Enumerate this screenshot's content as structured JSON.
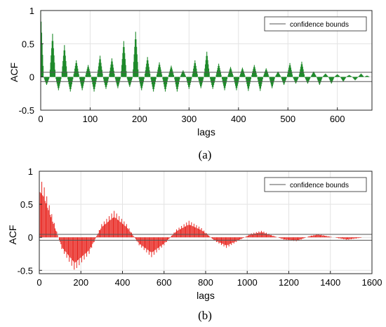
{
  "chart_data": [
    {
      "type": "bar",
      "panel_caption": "(a)",
      "xlabel": "lags",
      "ylabel": "ACF",
      "xlim": [
        0,
        670
      ],
      "ylim": [
        -0.5,
        1
      ],
      "xticks": [
        0,
        100,
        200,
        300,
        400,
        500,
        600
      ],
      "yticks": [
        -0.5,
        0,
        0.5,
        1
      ],
      "ytick_labels": [
        "-0.5",
        "0",
        "0.5",
        "1"
      ],
      "grid": true,
      "legend": {
        "position": "top-right",
        "entries": [
          "confidence bounds"
        ]
      },
      "confidence_bounds": [
        0.07,
        -0.07
      ],
      "bar_color": "#1f8a2b",
      "bound_color": "#555555",
      "peak_lags": [
        0,
        12,
        24,
        36,
        48,
        60,
        72,
        84,
        96,
        108,
        120,
        132,
        144,
        156,
        168,
        180,
        192,
        204,
        216,
        228,
        240,
        252,
        264,
        276,
        288,
        300,
        312,
        324,
        336,
        348,
        360,
        372,
        384,
        396,
        408,
        420,
        432,
        444,
        456,
        468,
        480,
        492,
        504,
        516,
        528,
        540,
        552,
        564,
        576,
        588,
        600,
        612,
        624,
        636,
        648,
        660
      ],
      "peak_acf": [
        1.0,
        -0.12,
        0.65,
        -0.2,
        0.48,
        -0.22,
        0.25,
        -0.2,
        0.18,
        -0.22,
        0.32,
        -0.18,
        0.28,
        -0.17,
        0.54,
        -0.15,
        0.68,
        -0.2,
        0.3,
        -0.22,
        0.22,
        -0.22,
        0.17,
        -0.22,
        0.1,
        -0.18,
        0.25,
        -0.17,
        0.38,
        -0.18,
        0.2,
        -0.2,
        0.15,
        -0.2,
        0.14,
        -0.21,
        0.18,
        -0.21,
        0.13,
        -0.17,
        0.08,
        -0.12,
        0.21,
        -0.1,
        0.23,
        -0.1,
        0.08,
        -0.12,
        0.05,
        -0.1,
        0.04,
        -0.07,
        0.03,
        -0.05,
        0.05,
        0.02
      ]
    },
    {
      "type": "bar",
      "panel_caption": "(b)",
      "xlabel": "lags",
      "ylabel": "ACF",
      "xlim": [
        0,
        1600
      ],
      "ylim": [
        -0.55,
        1
      ],
      "xticks": [
        0,
        200,
        400,
        600,
        800,
        1000,
        1200,
        1400,
        1600
      ],
      "yticks": [
        -0.5,
        0,
        0.5,
        1
      ],
      "ytick_labels": [
        "-0.5",
        "0",
        "0.5",
        "1"
      ],
      "grid": true,
      "legend": {
        "position": "top-right",
        "entries": [
          "confidence bounds"
        ]
      },
      "confidence_bounds": [
        0.045,
        -0.045
      ],
      "bar_color": "#e8241e",
      "bound_color": "#555555",
      "envelope_lags": [
        0,
        20,
        60,
        110,
        170,
        240,
        300,
        360,
        420,
        480,
        540,
        600,
        660,
        720,
        780,
        840,
        900,
        960,
        1020,
        1070,
        1120,
        1180,
        1240,
        1300,
        1340,
        1400,
        1480,
        1560
      ],
      "envelope_acf": [
        0.9,
        0.8,
        0.35,
        -0.2,
        -0.5,
        -0.25,
        0.2,
        0.4,
        0.2,
        -0.12,
        -0.3,
        -0.12,
        0.12,
        0.25,
        0.14,
        -0.05,
        -0.16,
        -0.05,
        0.06,
        0.1,
        0.03,
        -0.04,
        -0.06,
        0.02,
        0.05,
        0.01,
        -0.04,
        0.0
      ]
    }
  ]
}
